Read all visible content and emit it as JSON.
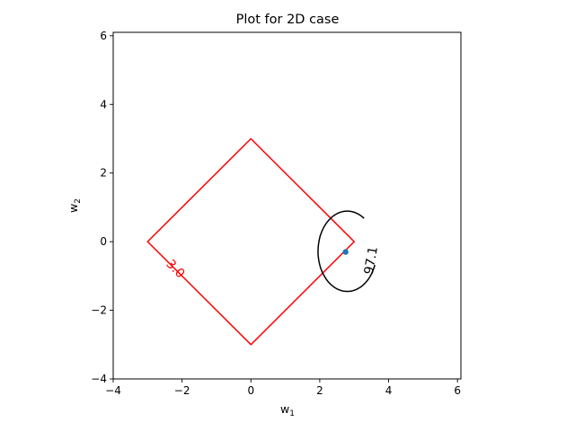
{
  "chart_data": {
    "type": "contour",
    "title": "Plot for 2D case",
    "xlabel_base": "w",
    "xlabel_sub": "1",
    "ylabel_base": "w",
    "ylabel_sub": "2",
    "xlim": [
      -4,
      6.1
    ],
    "ylim": [
      -4,
      6.1
    ],
    "xticks": [
      -4,
      -2,
      0,
      2,
      4,
      6
    ],
    "yticks": [
      -4,
      -2,
      0,
      2,
      4,
      6
    ],
    "xtick_labels": [
      "−4",
      "−2",
      "0",
      "2",
      "4",
      "6"
    ],
    "ytick_labels": [
      "−4",
      "−2",
      "0",
      "2",
      "4",
      "6"
    ],
    "diamond": {
      "label": "3.0",
      "color": "#ff0000",
      "vertices": [
        [
          0,
          3
        ],
        [
          3,
          0
        ],
        [
          0,
          -3
        ],
        [
          -3,
          0
        ]
      ],
      "label_at": [
        -2.2,
        -0.8
      ]
    },
    "ellipse": {
      "label": "97.1",
      "color": "#000000",
      "center": [
        2.8,
        -0.28
      ],
      "rx": 0.85,
      "ry": 1.17,
      "label_at": [
        3.5,
        -0.55
      ]
    },
    "point": {
      "x": 2.75,
      "y": -0.3,
      "color": "#1f77b4"
    }
  }
}
